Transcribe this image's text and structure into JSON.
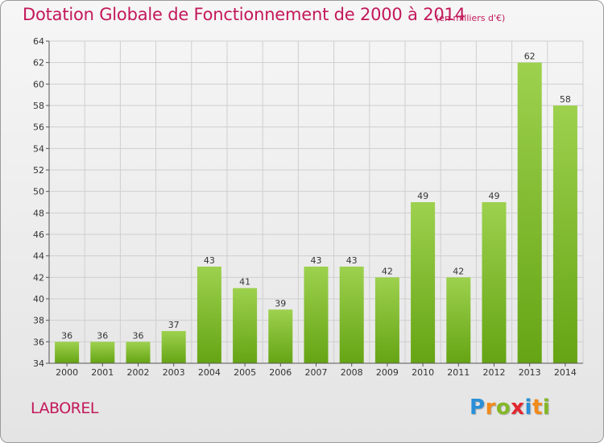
{
  "header": {
    "title": "Dotation Globale de Fonctionnement de 2000 à 2014",
    "subtitle": "(en milliers d'€)"
  },
  "footer": {
    "commune": "LABOREL",
    "logo_text": "Proxiti"
  },
  "colors": {
    "accent": "#c3185a",
    "bar_top": "#9dd14e",
    "bar_bottom": "#65a414",
    "grid": "#cfcfcf",
    "axis": "#555555"
  },
  "chart_data": {
    "type": "bar",
    "categories": [
      "2000",
      "2001",
      "2002",
      "2003",
      "2004",
      "2005",
      "2006",
      "2007",
      "2008",
      "2009",
      "2010",
      "2011",
      "2012",
      "2013",
      "2014"
    ],
    "values": [
      36,
      36,
      36,
      37,
      43,
      41,
      39,
      43,
      43,
      42,
      49,
      42,
      49,
      62,
      58
    ],
    "title": "Dotation Globale de Fonctionnement de 2000 à 2014",
    "subtitle": "(en milliers d'€)",
    "xlabel": "",
    "ylabel": "",
    "ylim": [
      34,
      64
    ],
    "yticks": [
      34,
      36,
      38,
      40,
      42,
      44,
      46,
      48,
      50,
      52,
      54,
      56,
      58,
      60,
      62,
      64
    ],
    "grid": true,
    "legend": "none"
  }
}
